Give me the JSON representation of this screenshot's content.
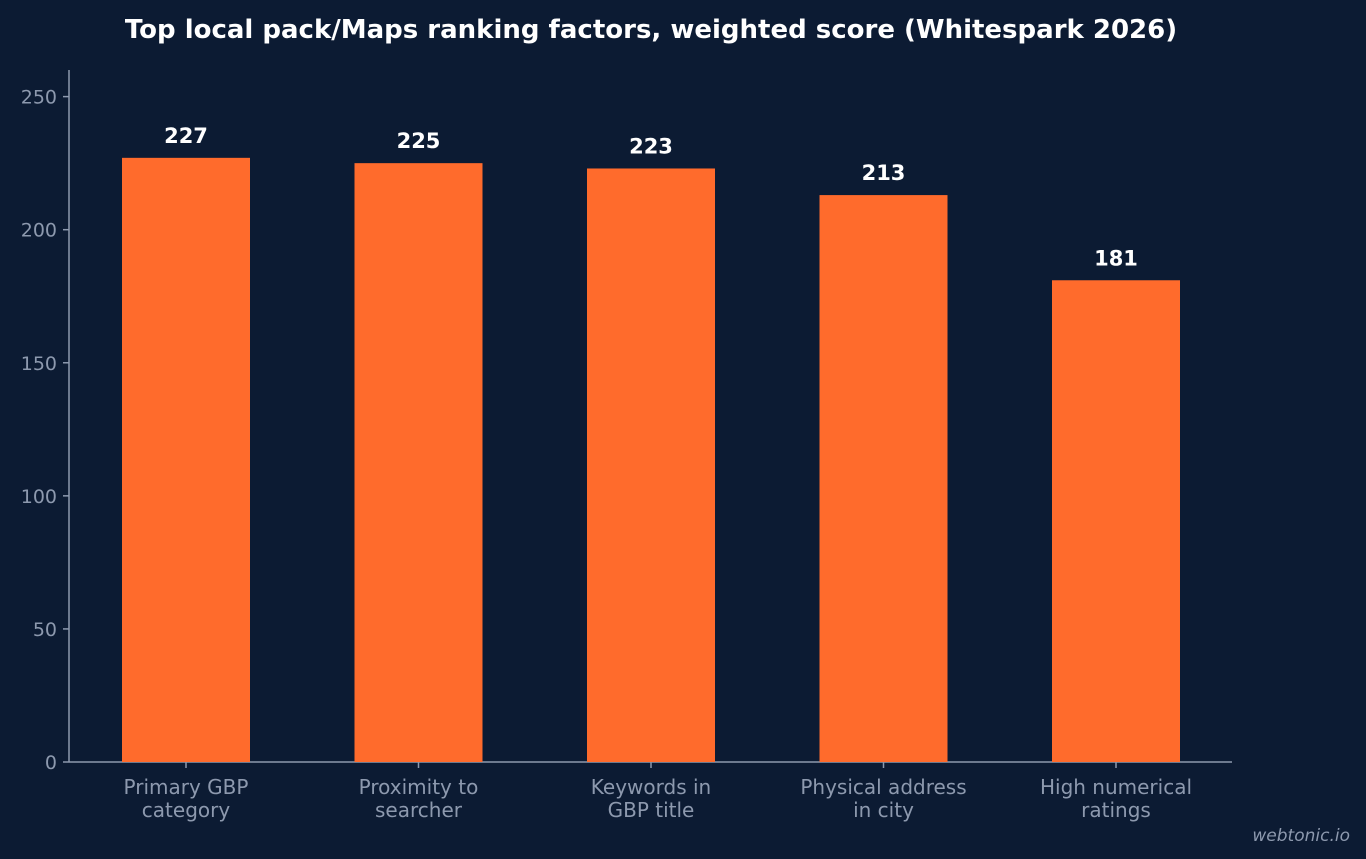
{
  "chart_data": {
    "type": "bar",
    "title": "Top local pack/Maps ranking factors, weighted score (Whitespark 2026)",
    "categories": [
      [
        "Primary GBP",
        "category"
      ],
      [
        "Proximity to",
        "searcher"
      ],
      [
        "Keywords in",
        "GBP title"
      ],
      [
        "Physical address",
        "in city"
      ],
      [
        "High numerical",
        "ratings"
      ]
    ],
    "values": [
      227,
      225,
      223,
      213,
      181
    ],
    "ylim": [
      0,
      260
    ],
    "yticks": [
      0,
      50,
      100,
      150,
      200,
      250
    ],
    "xlabel": "",
    "ylabel": "",
    "grid": false,
    "bar_color": "#ff6b2c",
    "background_color": "#0c1b33",
    "axis_color": "#8d99ae"
  },
  "watermark": "webtonic.io"
}
